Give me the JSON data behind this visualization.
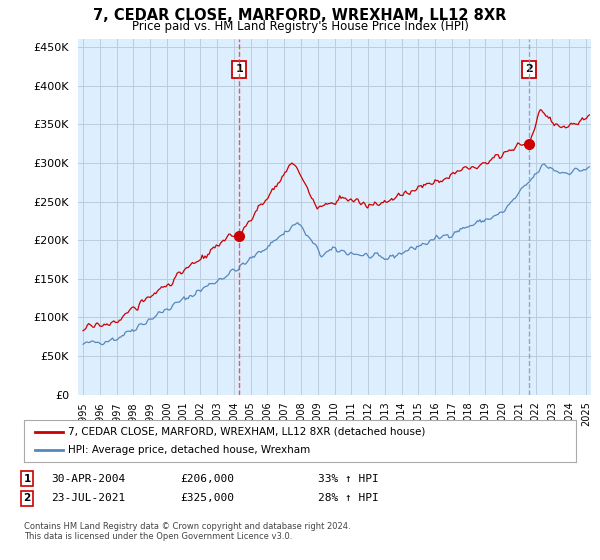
{
  "title": "7, CEDAR CLOSE, MARFORD, WREXHAM, LL12 8XR",
  "subtitle": "Price paid vs. HM Land Registry's House Price Index (HPI)",
  "legend_line1": "7, CEDAR CLOSE, MARFORD, WREXHAM, LL12 8XR (detached house)",
  "legend_line2": "HPI: Average price, detached house, Wrexham",
  "sale1_date": "30-APR-2004",
  "sale1_price": "£206,000",
  "sale1_hpi": "33% ↑ HPI",
  "sale1_year": 2004.33,
  "sale1_value": 206000,
  "sale2_date": "23-JUL-2021",
  "sale2_price": "£325,000",
  "sale2_hpi": "28% ↑ HPI",
  "sale2_year": 2021.58,
  "sale2_value": 325000,
  "red_color": "#cc0000",
  "blue_color": "#5588bb",
  "vline1_color": "#dd4444",
  "vline2_color": "#8899bb",
  "chart_bg": "#ddeeff",
  "background_color": "#ffffff",
  "grid_color": "#bbccdd",
  "ylim": [
    0,
    460000
  ],
  "xlim": [
    1994.7,
    2025.3
  ],
  "footnote": "Contains HM Land Registry data © Crown copyright and database right 2024.\nThis data is licensed under the Open Government Licence v3.0."
}
